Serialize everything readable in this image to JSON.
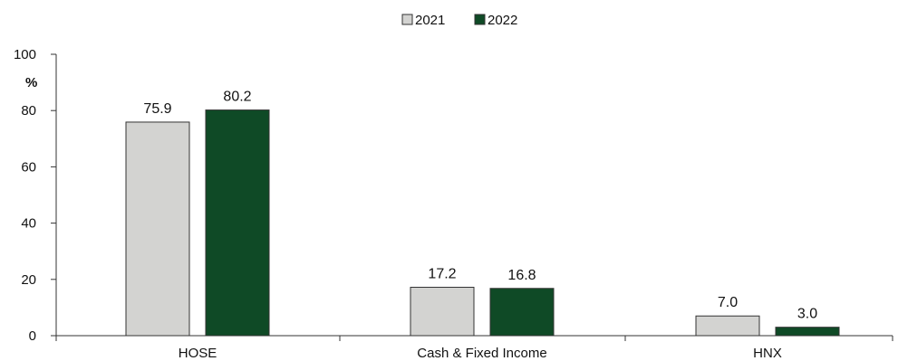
{
  "chart_data": {
    "type": "bar",
    "categories": [
      "HOSE",
      "Cash & Fixed Income",
      "HNX"
    ],
    "series": [
      {
        "name": "2021",
        "values": [
          75.9,
          17.2,
          7.0
        ],
        "labels": [
          "75.9",
          "17.2",
          "7.0"
        ],
        "color": "#d3d3d1"
      },
      {
        "name": "2022",
        "values": [
          80.2,
          16.8,
          3.0
        ],
        "labels": [
          "80.2",
          "16.8",
          "3.0"
        ],
        "color": "#0f4a26"
      }
    ],
    "ylabel": "%",
    "ylim": [
      0,
      100
    ],
    "yticks": [
      0,
      20,
      40,
      60,
      80,
      100
    ],
    "ytick_labels": [
      "0",
      "20",
      "40",
      "60",
      "80",
      "100"
    ],
    "grid": false,
    "legend": "top-center"
  }
}
